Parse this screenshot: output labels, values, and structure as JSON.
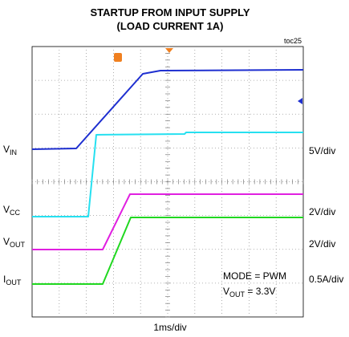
{
  "title": {
    "line1": "STARTUP FROM INPUT SUPPLY",
    "line2": "(LOAD CURRENT 1A)"
  },
  "figure_id": "toc25",
  "x_scale": "1ms/div",
  "traces": [
    {
      "label": "V",
      "label_sub": "IN",
      "scale": "5V/div"
    },
    {
      "label": "V",
      "label_sub": "CC",
      "scale": "2V/div"
    },
    {
      "label": "V",
      "label_sub": "OUT",
      "scale": "2V/div"
    },
    {
      "label": "I",
      "label_sub": "OUT",
      "scale": "0.5A/div"
    }
  ],
  "annotations": {
    "mode": "MODE = PWM",
    "vout_main": "V",
    "vout_sub": "OUT",
    "vout_rest": " = 3.3V"
  }
}
